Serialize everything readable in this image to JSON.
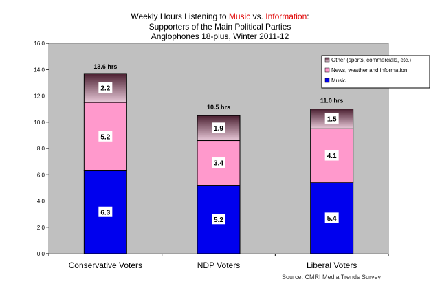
{
  "title": {
    "line1_pre": "Weekly Hours Listening to ",
    "line1_music": "Music",
    "line1_vs": " vs. ",
    "line1_info": "Information",
    "line1_post": ":",
    "line2": "Supporters of the Main Political Parties",
    "line3": "Anglophones 18-plus, Winter 2011-12"
  },
  "source": "Source: CMRI Media Trends Survey",
  "colors": {
    "music": "#0000ee",
    "news": "#ff99cc",
    "other_top": "#4a1f30",
    "other_bottom": "#e8c8d8",
    "plot_bg": "#c0c0c0",
    "title_red": "#e00000"
  },
  "chart_data": {
    "type": "bar",
    "stacked": true,
    "categories": [
      "Conservative Voters",
      "NDP Voters",
      "Liberal Voters"
    ],
    "series": [
      {
        "name": "Music",
        "values": [
          6.3,
          5.2,
          5.4
        ],
        "labels": [
          "6.3",
          "5.2",
          "5.4"
        ]
      },
      {
        "name": "News, weather and information",
        "values": [
          5.2,
          3.4,
          4.1
        ],
        "labels": [
          "5.2",
          "3.4",
          "4.1"
        ]
      },
      {
        "name": "Other (sports, commercials, etc.)",
        "values": [
          2.2,
          1.9,
          1.5
        ],
        "labels": [
          "2.2",
          "1.9",
          "1.5"
        ]
      }
    ],
    "totals": [
      13.6,
      10.5,
      11.0
    ],
    "total_labels": [
      "13.6 hrs",
      "10.5 hrs",
      "11.0 hrs"
    ],
    "ylim": [
      0,
      16
    ],
    "yticks": [
      "0.0",
      "2.0",
      "4.0",
      "6.0",
      "8.0",
      "10.0",
      "12.0",
      "14.0",
      "16.0"
    ],
    "grid": false,
    "legend": "top-right"
  }
}
